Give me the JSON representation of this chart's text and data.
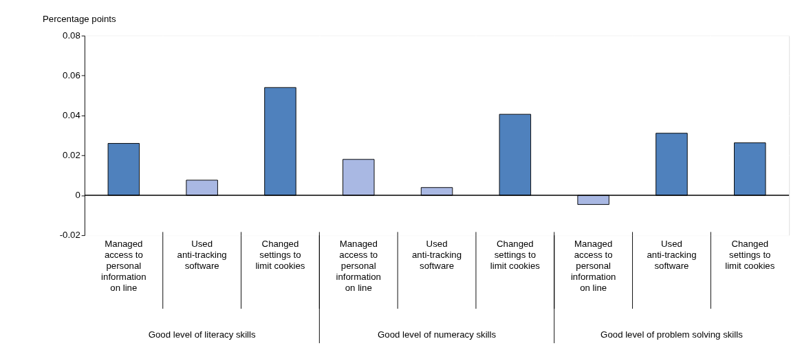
{
  "chart_data": {
    "type": "bar",
    "ylabel": "Percentage points",
    "categories": [
      "Managed access to personal information on line",
      "Used anti-tracking software",
      "Changed settings to limit cookies",
      "Managed access to personal information on line",
      "Used anti-tracking software",
      "Changed settings to limit cookies",
      "Managed access to personal information on line",
      "Used anti-tracking software",
      "Changed settings to limit cookies"
    ],
    "values": [
      0.026,
      0.0076,
      0.054,
      0.018,
      0.0039,
      0.0406,
      -0.0046,
      0.0311,
      0.0263
    ],
    "colors": [
      "#4f81bd",
      "#a9b8e3",
      "#4f81bd",
      "#a9b8e3",
      "#a9b8e3",
      "#4f81bd",
      "#a9b8e3",
      "#4f81bd",
      "#4f81bd"
    ],
    "ylim": [
      -0.02,
      0.08
    ],
    "yticks": [
      -0.02,
      0,
      0.02,
      0.04,
      0.06,
      0.08
    ],
    "grid": true,
    "ref_lines": [
      {
        "axis": "y",
        "value": 0
      }
    ],
    "annotations": [
      "Good level of literacy skills",
      "Good level of numeracy skills",
      "Good level of problem solving skills"
    ]
  }
}
